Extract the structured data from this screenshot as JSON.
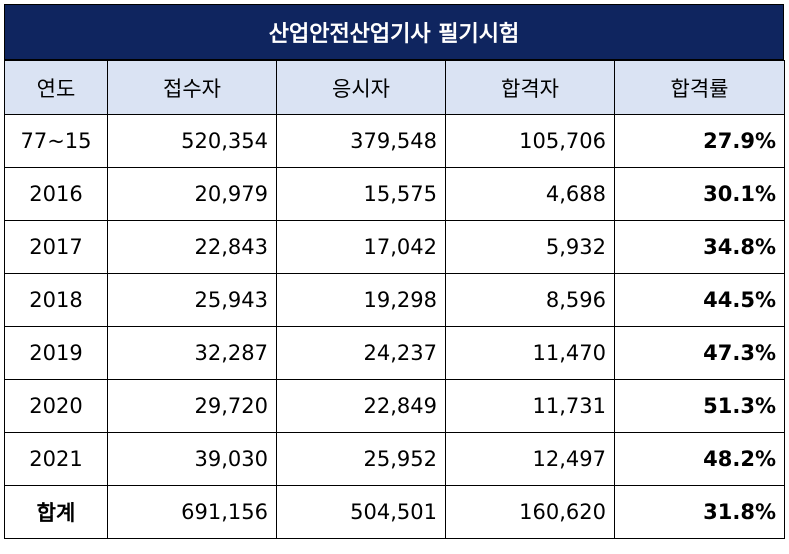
{
  "chart_data": {
    "type": "table",
    "title": "산업안전산업기사 필기시험",
    "columns": [
      "연도",
      "접수자",
      "응시자",
      "합격자",
      "합격률"
    ],
    "rows": [
      {
        "year": "77~15",
        "applicants": "520,354",
        "examinees": "379,548",
        "passers": "105,706",
        "rate": "27.9%"
      },
      {
        "year": "2016",
        "applicants": "20,979",
        "examinees": "15,575",
        "passers": "4,688",
        "rate": "30.1%"
      },
      {
        "year": "2017",
        "applicants": "22,843",
        "examinees": "17,042",
        "passers": "5,932",
        "rate": "34.8%"
      },
      {
        "year": "2018",
        "applicants": "25,943",
        "examinees": "19,298",
        "passers": "8,596",
        "rate": "44.5%"
      },
      {
        "year": "2019",
        "applicants": "32,287",
        "examinees": "24,237",
        "passers": "11,470",
        "rate": "47.3%"
      },
      {
        "year": "2020",
        "applicants": "29,720",
        "examinees": "22,849",
        "passers": "11,731",
        "rate": "51.3%"
      },
      {
        "year": "2021",
        "applicants": "39,030",
        "examinees": "25,952",
        "passers": "12,497",
        "rate": "48.2%"
      }
    ],
    "total": {
      "year": "합계",
      "applicants": "691,156",
      "examinees": "504,501",
      "passers": "160,620",
      "rate": "31.8%"
    }
  },
  "colors": {
    "title_bg": "#0f255f",
    "title_text": "#ffffff",
    "header_bg": "#dae3f3"
  }
}
